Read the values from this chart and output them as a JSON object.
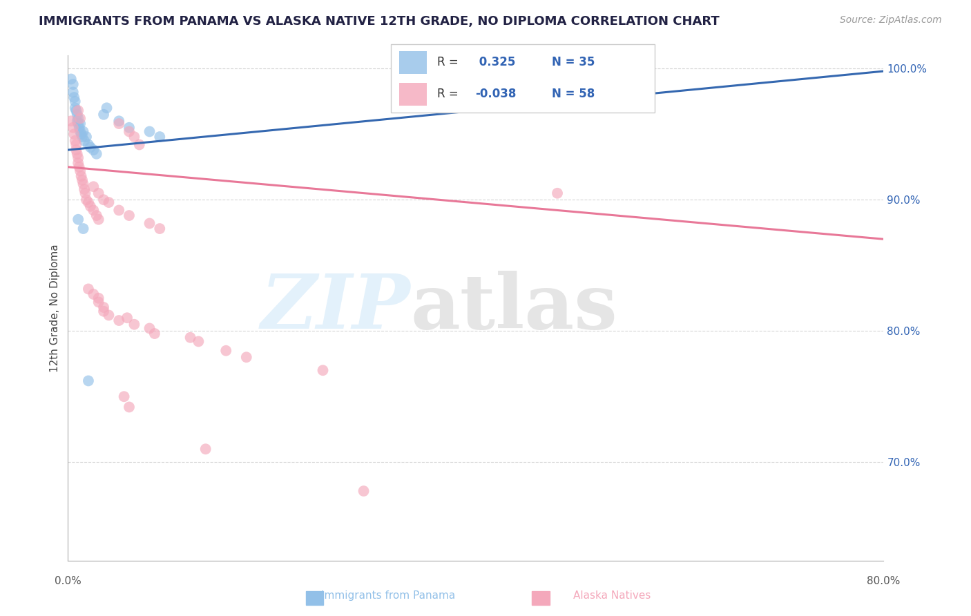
{
  "title": "IMMIGRANTS FROM PANAMA VS ALASKA NATIVE 12TH GRADE, NO DIPLOMA CORRELATION CHART",
  "source": "Source: ZipAtlas.com",
  "ylabel": "12th Grade, No Diploma",
  "x_label_blue": "Immigrants from Panama",
  "x_label_pink": "Alaska Natives",
  "xlim": [
    0.0,
    0.8
  ],
  "ylim": [
    0.625,
    1.01
  ],
  "yticks": [
    0.7,
    0.8,
    0.9,
    1.0
  ],
  "ytick_labels": [
    "70.0%",
    "80.0%",
    "90.0%",
    "100.0%"
  ],
  "R_blue": 0.325,
  "N_blue": 35,
  "R_pink": -0.038,
  "N_pink": 58,
  "blue_color": "#92c0e8",
  "pink_color": "#f4a8bb",
  "blue_line_color": "#3568b0",
  "pink_line_color": "#e87898",
  "text_color": "#3264b4",
  "title_color": "#222244",
  "blue_dots": [
    [
      0.003,
      0.992
    ],
    [
      0.005,
      0.988
    ],
    [
      0.005,
      0.982
    ],
    [
      0.006,
      0.978
    ],
    [
      0.007,
      0.975
    ],
    [
      0.007,
      0.97
    ],
    [
      0.008,
      0.968
    ],
    [
      0.009,
      0.965
    ],
    [
      0.009,
      0.96
    ],
    [
      0.01,
      0.962
    ],
    [
      0.01,
      0.958
    ],
    [
      0.011,
      0.955
    ],
    [
      0.012,
      0.952
    ],
    [
      0.012,
      0.958
    ],
    [
      0.013,
      0.95
    ],
    [
      0.014,
      0.948
    ],
    [
      0.015,
      0.952
    ],
    [
      0.016,
      0.945
    ],
    [
      0.018,
      0.948
    ],
    [
      0.02,
      0.942
    ],
    [
      0.022,
      0.94
    ],
    [
      0.025,
      0.938
    ],
    [
      0.028,
      0.935
    ],
    [
      0.035,
      0.965
    ],
    [
      0.038,
      0.97
    ],
    [
      0.05,
      0.96
    ],
    [
      0.06,
      0.955
    ],
    [
      0.08,
      0.952
    ],
    [
      0.09,
      0.948
    ],
    [
      0.01,
      0.885
    ],
    [
      0.015,
      0.878
    ],
    [
      0.02,
      0.762
    ],
    [
      0.34,
      0.992
    ],
    [
      0.395,
      0.998
    ],
    [
      0.45,
      0.995
    ]
  ],
  "pink_dots": [
    [
      0.003,
      0.96
    ],
    [
      0.005,
      0.955
    ],
    [
      0.006,
      0.95
    ],
    [
      0.007,
      0.945
    ],
    [
      0.008,
      0.942
    ],
    [
      0.008,
      0.938
    ],
    [
      0.009,
      0.935
    ],
    [
      0.01,
      0.932
    ],
    [
      0.01,
      0.928
    ],
    [
      0.011,
      0.925
    ],
    [
      0.012,
      0.922
    ],
    [
      0.013,
      0.918
    ],
    [
      0.014,
      0.915
    ],
    [
      0.015,
      0.912
    ],
    [
      0.016,
      0.908
    ],
    [
      0.017,
      0.905
    ],
    [
      0.018,
      0.9
    ],
    [
      0.02,
      0.898
    ],
    [
      0.022,
      0.895
    ],
    [
      0.025,
      0.892
    ],
    [
      0.028,
      0.888
    ],
    [
      0.03,
      0.885
    ],
    [
      0.01,
      0.968
    ],
    [
      0.012,
      0.962
    ],
    [
      0.05,
      0.958
    ],
    [
      0.06,
      0.952
    ],
    [
      0.065,
      0.948
    ],
    [
      0.07,
      0.942
    ],
    [
      0.025,
      0.91
    ],
    [
      0.03,
      0.905
    ],
    [
      0.035,
      0.9
    ],
    [
      0.04,
      0.898
    ],
    [
      0.05,
      0.892
    ],
    [
      0.06,
      0.888
    ],
    [
      0.08,
      0.882
    ],
    [
      0.09,
      0.878
    ],
    [
      0.02,
      0.832
    ],
    [
      0.025,
      0.828
    ],
    [
      0.03,
      0.825
    ],
    [
      0.03,
      0.822
    ],
    [
      0.035,
      0.818
    ],
    [
      0.035,
      0.815
    ],
    [
      0.04,
      0.812
    ],
    [
      0.05,
      0.808
    ],
    [
      0.058,
      0.81
    ],
    [
      0.065,
      0.805
    ],
    [
      0.08,
      0.802
    ],
    [
      0.085,
      0.798
    ],
    [
      0.12,
      0.795
    ],
    [
      0.128,
      0.792
    ],
    [
      0.155,
      0.785
    ],
    [
      0.175,
      0.78
    ],
    [
      0.25,
      0.77
    ],
    [
      0.48,
      0.905
    ],
    [
      0.055,
      0.75
    ],
    [
      0.06,
      0.742
    ],
    [
      0.135,
      0.71
    ],
    [
      0.29,
      0.678
    ]
  ],
  "blue_trendline": [
    0.0,
    0.8,
    0.938,
    0.998
  ],
  "pink_trendline": [
    0.0,
    0.8,
    0.925,
    0.87
  ]
}
